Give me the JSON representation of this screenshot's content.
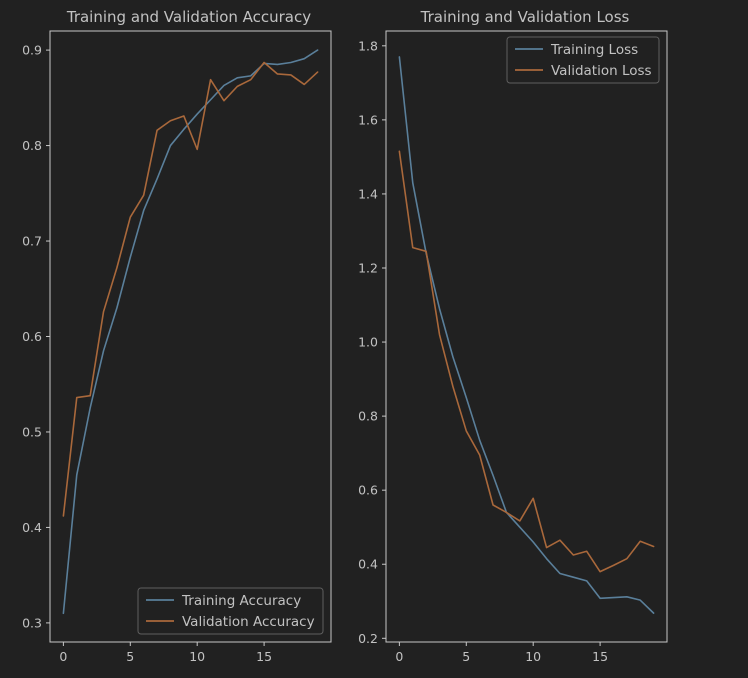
{
  "colors": {
    "background": "#212121",
    "axes": "#c8c8c8",
    "text": "#c2c2c2",
    "training": "#5a7f9a",
    "validation": "#a9683b",
    "legend_bg": "#212121",
    "legend_border": "#5e5e5e"
  },
  "chart_data": [
    {
      "type": "line",
      "title": "Training and Validation Accuracy",
      "xlabel": "",
      "ylabel": "",
      "xlim": [
        -1.0,
        20.0
      ],
      "ylim": [
        0.28,
        0.92
      ],
      "xticks": [
        0,
        5,
        10,
        15
      ],
      "xtick_labels": [
        "0",
        "5",
        "10",
        "15"
      ],
      "yticks": [
        0.3,
        0.4,
        0.5,
        0.6,
        0.7,
        0.8,
        0.9
      ],
      "ytick_labels": [
        "0.3",
        "0.4",
        "0.5",
        "0.6",
        "0.7",
        "0.8",
        "0.9"
      ],
      "grid": false,
      "legend": "lower right",
      "x": [
        0,
        1,
        2,
        3,
        4,
        5,
        6,
        7,
        8,
        9,
        10,
        11,
        12,
        13,
        14,
        15,
        16,
        17,
        18,
        19
      ],
      "series": [
        {
          "name": "Training Accuracy",
          "color": "#5a7f9a",
          "values": [
            0.31,
            0.455,
            0.525,
            0.585,
            0.63,
            0.683,
            0.732,
            0.765,
            0.8,
            0.817,
            0.833,
            0.848,
            0.863,
            0.871,
            0.873,
            0.886,
            0.885,
            0.887,
            0.891,
            0.9
          ]
        },
        {
          "name": "Validation Accuracy",
          "color": "#a9683b",
          "values": [
            0.412,
            0.536,
            0.538,
            0.626,
            0.672,
            0.725,
            0.748,
            0.816,
            0.826,
            0.831,
            0.796,
            0.869,
            0.847,
            0.862,
            0.869,
            0.887,
            0.875,
            0.874,
            0.864,
            0.877
          ]
        }
      ]
    },
    {
      "type": "line",
      "title": "Training and Validation Loss",
      "xlabel": "",
      "ylabel": "",
      "xlim": [
        -1.0,
        20.0
      ],
      "ylim": [
        0.19,
        1.84
      ],
      "xticks": [
        0,
        5,
        10,
        15
      ],
      "xtick_labels": [
        "0",
        "5",
        "10",
        "15"
      ],
      "yticks": [
        0.2,
        0.4,
        0.6,
        0.8,
        1.0,
        1.2,
        1.4,
        1.6,
        1.8
      ],
      "ytick_labels": [
        "0.2",
        "0.4",
        "0.6",
        "0.8",
        "1.0",
        "1.2",
        "1.4",
        "1.6",
        "1.8"
      ],
      "grid": false,
      "legend": "upper right",
      "x": [
        0,
        1,
        2,
        3,
        4,
        5,
        6,
        7,
        8,
        9,
        10,
        11,
        12,
        13,
        14,
        15,
        16,
        17,
        18,
        19
      ],
      "series": [
        {
          "name": "Training Loss",
          "color": "#5a7f9a",
          "values": [
            1.77,
            1.43,
            1.24,
            1.09,
            0.96,
            0.85,
            0.735,
            0.64,
            0.54,
            0.5,
            0.46,
            0.415,
            0.375,
            0.365,
            0.355,
            0.308,
            0.31,
            0.312,
            0.303,
            0.268
          ]
        },
        {
          "name": "Validation Loss",
          "color": "#a9683b",
          "values": [
            1.515,
            1.255,
            1.245,
            1.02,
            0.88,
            0.76,
            0.695,
            0.56,
            0.54,
            0.517,
            0.578,
            0.445,
            0.465,
            0.425,
            0.435,
            0.38,
            0.397,
            0.415,
            0.462,
            0.448
          ]
        }
      ]
    }
  ]
}
